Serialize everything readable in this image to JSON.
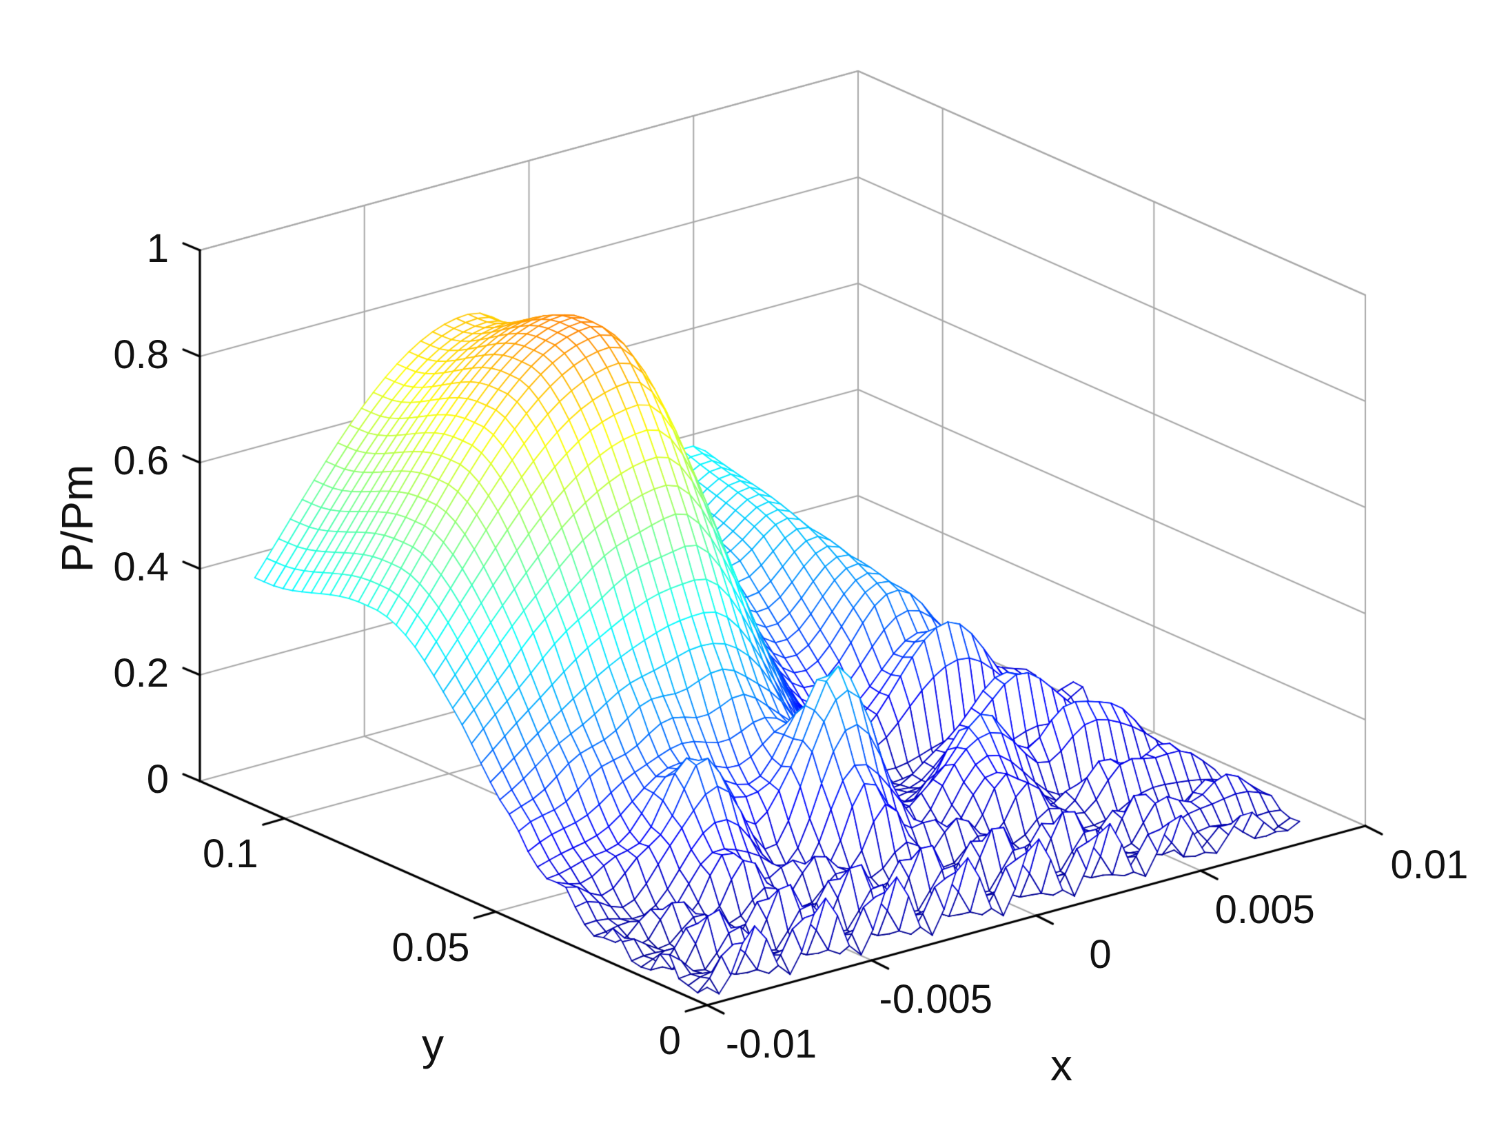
{
  "figure": {
    "background": "#ffffff",
    "grid_line_color": "#a8a8a8",
    "axis_line_color": "#000000",
    "label_color": "#111111"
  },
  "chart_data": {
    "type": "surface_mesh_3d",
    "title": "",
    "xlabel": "x",
    "ylabel": "y",
    "zlabel": "P/Pm",
    "xlim": [
      -0.01,
      0.01
    ],
    "ylim": [
      0,
      0.12
    ],
    "zlim": [
      0,
      1
    ],
    "xticks": [
      {
        "value": -0.01,
        "label": "-0.01"
      },
      {
        "value": -0.005,
        "label": "-0.005"
      },
      {
        "value": 0,
        "label": "0"
      },
      {
        "value": 0.005,
        "label": "0.005"
      },
      {
        "value": 0.01,
        "label": "0.01"
      }
    ],
    "yticks": [
      {
        "value": 0,
        "label": "0"
      },
      {
        "value": 0.05,
        "label": "0.05"
      },
      {
        "value": 0.1,
        "label": "0.1"
      }
    ],
    "zticks": [
      {
        "value": 0,
        "label": "0"
      },
      {
        "value": 0.2,
        "label": "0.2"
      },
      {
        "value": 0.4,
        "label": "0.4"
      },
      {
        "value": 0.6,
        "label": "0.6"
      },
      {
        "value": 0.8,
        "label": "0.8"
      },
      {
        "value": 1,
        "label": "1"
      }
    ],
    "grid": true,
    "legend": false,
    "colormap": "jet",
    "color_axis_max": 1.2,
    "view": {
      "azimuth_deg": -37.5,
      "elevation_deg": 30
    },
    "data_domain": {
      "x_range": [
        -0.01,
        0.008
      ],
      "y_range": [
        0,
        0.107
      ],
      "nx": 50,
      "ny": 48
    },
    "surface_model": {
      "peak_amplitude": 0.88,
      "main_lobe_center_x": -0.0035,
      "main_lobe_width_left": 0.008,
      "main_lobe_width_right_base": 0.0026,
      "main_lobe_width_right_growth": 0.03,
      "axial_ramp_start": 0.024,
      "axial_ramp_span": 0.055,
      "axial_rolloff_start": 0.082,
      "axial_rolloff_span": 0.022,
      "axial_rolloff_depth": 0.09,
      "side_lobe_amp": 0.34,
      "side_lobe_amp_floor": 0.22,
      "side_lobe_center_x": 0.0036,
      "side_lobe_drift": 0.04,
      "side_lobe_drift_ref_y": 0.085,
      "side_lobe_width": 0.0021,
      "side_lobe_mod_period": 0.0125,
      "side_lobe_mod_phase_y": 0.0455,
      "side_lobe_blend_y": 0.05,
      "outer_lobe_offset": 0.0036,
      "outer_lobe_width": 0.0019,
      "outer_lobe_gain": 0.5,
      "nearfield_amp": 0.13,
      "nearfield_decay_y": 0.032,
      "nearfield_wavelength_x": 0.00215,
      "nearfield_wavelength_y": 0.0115,
      "nearfield_phase_tilt": 500,
      "aperture_center": -0.0025,
      "aperture_halfwidth": 0.0095,
      "axial_max_amp": 0.3,
      "axial_max_y": 0.032,
      "axial_max_spread_y": 0.008,
      "axial_max_center_x": -0.0018,
      "axial_max_period_x": 0.0044,
      "axial_max_window": 0.0055,
      "base_offset": 0.015
    },
    "sampled_grid": {
      "x": [
        -0.01,
        -0.008,
        -0.006,
        -0.004,
        -0.002,
        0,
        0.002,
        0.004,
        0.006,
        0.008
      ],
      "y": [
        0,
        0.01,
        0.02,
        0.03,
        0.04,
        0.05,
        0.06,
        0.07,
        0.08,
        0.09,
        0.1,
        0.107
      ],
      "z": [
        [
          0.04,
          0.05,
          0.08,
          0.11,
          0.12,
          0.15,
          0.12,
          0.1,
          0.07,
          0.03
        ],
        [
          0.04,
          0.1,
          0.05,
          0.12,
          0.08,
          0.05,
          0.07,
          0.06,
          0.08,
          0.03
        ],
        [
          0.03,
          0.06,
          0.04,
          0.07,
          0.05,
          0.04,
          0.06,
          0.1,
          0.12,
          0.04
        ],
        [
          0.05,
          0.1,
          0.26,
          0.1,
          0.31,
          0.15,
          0.2,
          0.1,
          0.07,
          0.03
        ],
        [
          0.12,
          0.15,
          0.18,
          0.2,
          0.15,
          0.06,
          0.04,
          0.05,
          0.04,
          0.02
        ],
        [
          0.25,
          0.34,
          0.42,
          0.46,
          0.36,
          0.14,
          0.04,
          0.06,
          0.04,
          0.03
        ],
        [
          0.35,
          0.5,
          0.62,
          0.68,
          0.56,
          0.23,
          0.06,
          0.25,
          0.15,
          0.03
        ],
        [
          0.43,
          0.61,
          0.76,
          0.84,
          0.71,
          0.34,
          0.09,
          0.29,
          0.13,
          0.03
        ],
        [
          0.46,
          0.64,
          0.8,
          0.88,
          0.75,
          0.37,
          0.1,
          0.31,
          0.11,
          0.03
        ],
        [
          0.44,
          0.62,
          0.78,
          0.85,
          0.75,
          0.43,
          0.15,
          0.35,
          0.11,
          0.03
        ],
        [
          0.42,
          0.59,
          0.73,
          0.8,
          0.73,
          0.45,
          0.19,
          0.37,
          0.12,
          0.03
        ],
        [
          0.41,
          0.58,
          0.72,
          0.8,
          0.72,
          0.46,
          0.2,
          0.37,
          0.12,
          0.03
        ]
      ]
    }
  }
}
